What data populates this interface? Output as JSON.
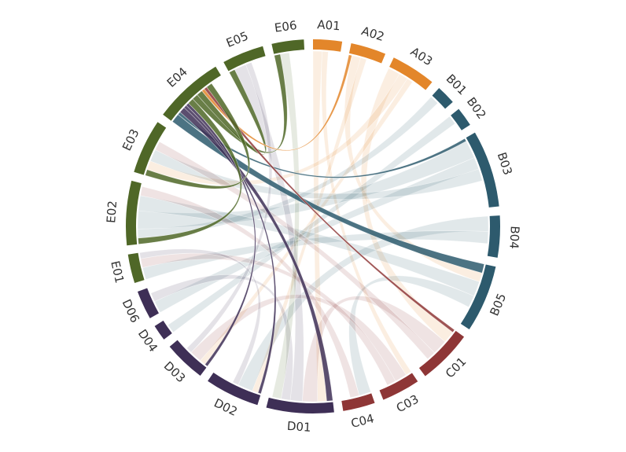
{
  "chart_data": {
    "type": "chord",
    "highlight": 19,
    "groups": [
      {
        "name": "A01",
        "value": 9,
        "color": "#e3862a"
      },
      {
        "name": "A02",
        "value": 11,
        "color": "#e3862a"
      },
      {
        "name": "A03",
        "value": 14,
        "color": "#e3862a"
      },
      {
        "name": "B01",
        "value": 6,
        "color": "#2d5a6d"
      },
      {
        "name": "B02",
        "value": 6,
        "color": "#2d5a6d"
      },
      {
        "name": "B03",
        "value": 24,
        "color": "#2d5a6d"
      },
      {
        "name": "B04",
        "value": 13,
        "color": "#2d5a6d"
      },
      {
        "name": "B05",
        "value": 21,
        "color": "#2d5a6d"
      },
      {
        "name": "C01",
        "value": 17,
        "color": "#8e3636"
      },
      {
        "name": "C03",
        "value": 12,
        "color": "#8e3636"
      },
      {
        "name": "C04",
        "value": 10,
        "color": "#8e3636"
      },
      {
        "name": "D01",
        "value": 21,
        "color": "#3e2f56"
      },
      {
        "name": "D02",
        "value": 17,
        "color": "#3e2f56"
      },
      {
        "name": "D03",
        "value": 13,
        "color": "#3e2f56"
      },
      {
        "name": "D04",
        "value": 5,
        "color": "#3e2f56"
      },
      {
        "name": "D06",
        "value": 9,
        "color": "#3e2f56"
      },
      {
        "name": "E01",
        "value": 9,
        "color": "#4f6727"
      },
      {
        "name": "E02",
        "value": 20,
        "color": "#4f6727"
      },
      {
        "name": "E03",
        "value": 17,
        "color": "#4f6727"
      },
      {
        "name": "E04",
        "value": 22,
        "color": "#4f6727"
      },
      {
        "name": "E05",
        "value": 13,
        "color": "#4f6727"
      },
      {
        "name": "E06",
        "value": 10,
        "color": "#4f6727"
      }
    ],
    "links": [
      {
        "source": 19,
        "target": 7,
        "value": 3
      },
      {
        "source": 19,
        "target": 5,
        "value": 1
      },
      {
        "source": 19,
        "target": 11,
        "value": 2
      },
      {
        "source": 19,
        "target": 12,
        "value": 1
      },
      {
        "source": 19,
        "target": 13,
        "value": 1
      },
      {
        "source": 19,
        "target": 17,
        "value": 2
      },
      {
        "source": 19,
        "target": 21,
        "value": 2
      },
      {
        "source": 19,
        "target": 20,
        "value": 2
      },
      {
        "source": 19,
        "target": 1,
        "value": 1
      },
      {
        "source": 19,
        "target": 8,
        "value": 1
      },
      {
        "source": 19,
        "target": 18,
        "value": 2
      },
      {
        "source": 0,
        "target": 11,
        "value": 3
      },
      {
        "source": 0,
        "target": 9,
        "value": 2
      },
      {
        "source": 1,
        "target": 7,
        "value": 3
      },
      {
        "source": 1,
        "target": 12,
        "value": 2
      },
      {
        "source": 2,
        "target": 8,
        "value": 4
      },
      {
        "source": 2,
        "target": 18,
        "value": 3
      },
      {
        "source": 2,
        "target": 13,
        "value": 2
      },
      {
        "source": 3,
        "target": 17,
        "value": 3
      },
      {
        "source": 4,
        "target": 14,
        "value": 3
      },
      {
        "source": 5,
        "target": 17,
        "value": 6
      },
      {
        "source": 5,
        "target": 15,
        "value": 4
      },
      {
        "source": 5,
        "target": 18,
        "value": 4
      },
      {
        "source": 6,
        "target": 12,
        "value": 5
      },
      {
        "source": 6,
        "target": 16,
        "value": 4
      },
      {
        "source": 7,
        "target": 17,
        "value": 5
      },
      {
        "source": 7,
        "target": 10,
        "value": 4
      },
      {
        "source": 8,
        "target": 11,
        "value": 5
      },
      {
        "source": 8,
        "target": 18,
        "value": 3
      },
      {
        "source": 9,
        "target": 13,
        "value": 4
      },
      {
        "source": 9,
        "target": 16,
        "value": 3
      },
      {
        "source": 10,
        "target": 17,
        "value": 3
      },
      {
        "source": 11,
        "target": 20,
        "value": 4
      },
      {
        "source": 11,
        "target": 15,
        "value": 3
      },
      {
        "source": 12,
        "target": 16,
        "value": 2
      },
      {
        "source": 13,
        "target": 20,
        "value": 2
      },
      {
        "source": 21,
        "target": 11,
        "value": 3
      }
    ]
  }
}
